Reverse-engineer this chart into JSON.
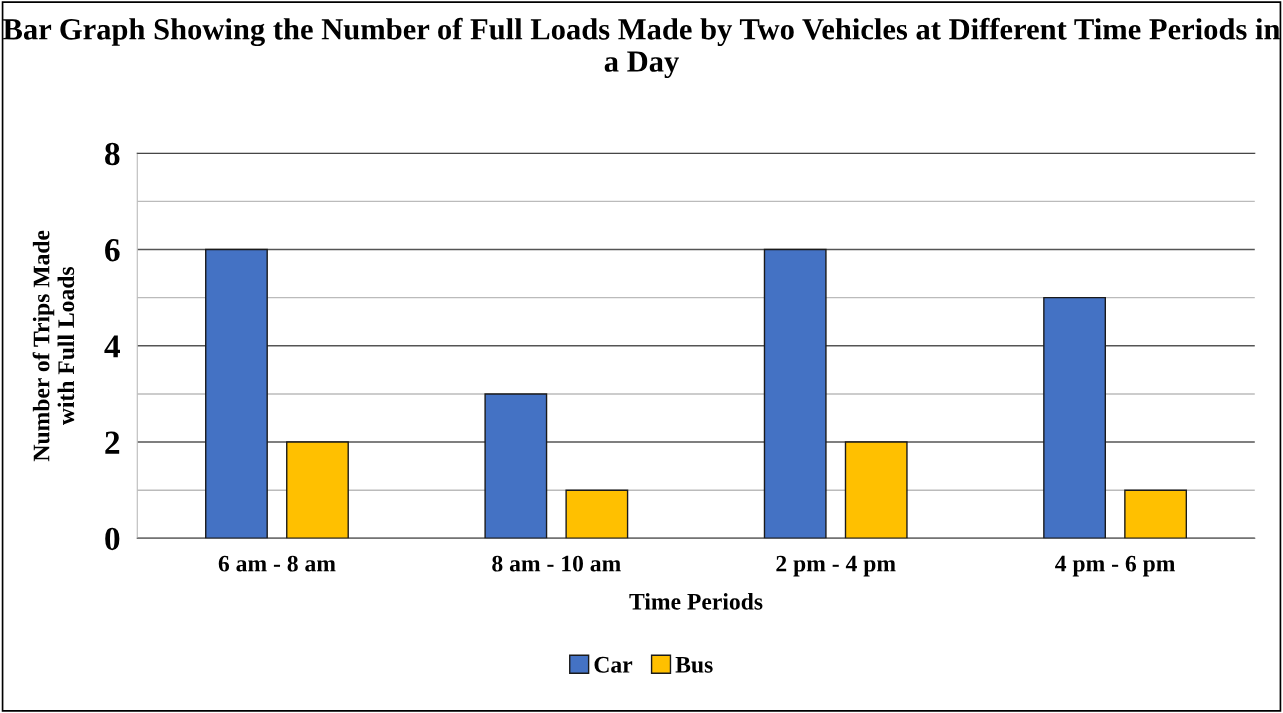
{
  "chart_data": {
    "type": "bar",
    "title": "Bar Graph Showing the Number of Full Loads Made by Two Vehicles at Different Time Periods in a Day",
    "xlabel": "Time Periods",
    "ylabel": "Number of Trips Made\nwith Full Loads",
    "categories": [
      "6 am - 8 am",
      "8 am - 10 am",
      "2 pm - 4 pm",
      "4 pm - 6 pm"
    ],
    "series": [
      {
        "name": "Car",
        "color": "#4472c4",
        "values": [
          6,
          3,
          6,
          5
        ]
      },
      {
        "name": "Bus",
        "color": "#ffc000",
        "values": [
          2,
          1,
          2,
          1
        ]
      }
    ],
    "ylim": [
      0,
      8
    ],
    "yticks": [
      0,
      {
        "value": 1,
        "label": null
      },
      2,
      {
        "value": 3,
        "label": null
      },
      4,
      {
        "value": 5,
        "label": null
      },
      6,
      {
        "value": 7,
        "label": null
      },
      8
    ],
    "grid": "y",
    "legend": "bottom"
  }
}
